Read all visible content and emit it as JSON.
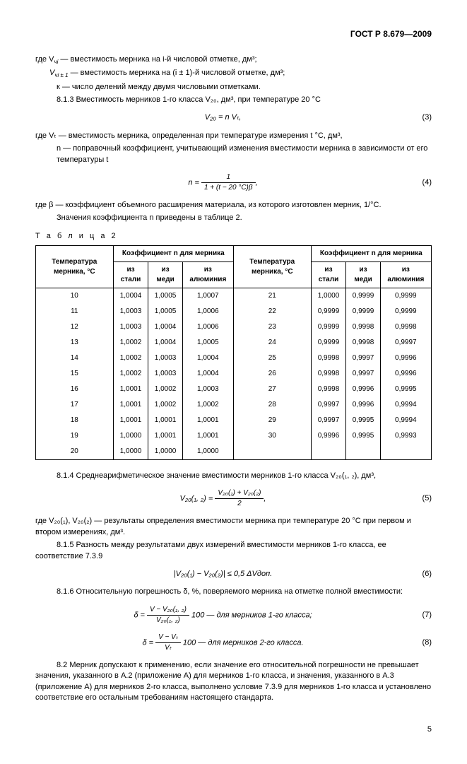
{
  "header": "ГОСТ Р 8.679—2009",
  "lines": {
    "l1a": "где V",
    "l1b": " — вместимость мерника на i-й числовой отметке, дм³;",
    "l2a": "V",
    "l2b": " — вместимость мерника на (i ± 1)-й числовой отметке, дм³;",
    "l3": "к — число делений между двумя числовыми отметками.",
    "l4": "8.1.3 Вместимость мерников 1-го класса V₂₀, дм³, при температуре 20 °C",
    "l5": "где Vₜ — вместимость мерника, определенная при температуре измерения t °C, дм³,",
    "l6": "n — поправочный коэффициент, учитывающий изменения вместимости мерника в зависимости от его температуры t",
    "l7": "где β — коэффициент объемного расширения материала, из которого изготовлен мерник, 1/°C.",
    "l8": "Значения коэффициента n приведены в таблице 2.",
    "l9": "8.1.4 Среднеарифметическое значение вместимости мерников 1-го класса V₂₀(₁, ₂), дм³,",
    "l10": "где V₂₀(₁), V₂₀(₂) — результаты определения вместимости мерника при температуре 20 °C при первом и втором измерениях, дм³.",
    "l11": "8.1.5 Разность между результатами двух измерений вместимости мерников 1-го класса, ее соответствие 7.3.9",
    "l12": "8.1.6 Относительную погрешность δ, %, поверяемого мерника на отметке полной вместимости:",
    "l13": "8.2 Мерник допускают к применению, если значение его относительной погрешности не превышает значения, указанного в А.2 (приложение А) для мерников 1-го класса, и значения, указанного в А.3 (приложение А) для мерников 2-го класса, выполнено условие 7.3.9 для мерников 1-го класса и установлено соответствие его остальным требованиям настоящего стандарта."
  },
  "formulas": {
    "f3": "V₂₀ = n Vₜ,",
    "f4_lhs": "n = ",
    "f4_num": "1",
    "f4_den": "1 + (t − 20 °C)β",
    "f5_lhs": "V₂₀(₁, ₂) = ",
    "f5_num": "V₂₀(₁) + V₂₀(₂)",
    "f5_den": "2",
    "f6": "|V₂₀(₁) − V₂₀(₂)| ≤ 0,5 ΔVдоп.",
    "f7_lhs": "δ = ",
    "f7_num": "V − V₂₀(₁, ₂)",
    "f7_den": "V₂₀(₁, ₂)",
    "f7_tail": " 100 — для мерников 1-го класса;",
    "f8_lhs": "δ = ",
    "f8_num": "V − Vₜ",
    "f8_den": "Vₜ",
    "f8_tail": " 100 — для мерников 2-го класса."
  },
  "eqnums": {
    "n3": "(3)",
    "n4": "(4)",
    "n5": "(5)",
    "n6": "(6)",
    "n7": "(7)",
    "n8": "(8)"
  },
  "tablelabel": "Т а б л и ц а  2",
  "table": {
    "h1": "Температура мерника, °C",
    "h2": "Коэффициент n для мерника",
    "c1": "из стали",
    "c2": "из меди",
    "c3": "из алюминия",
    "left": [
      [
        "10",
        "1,0004",
        "1,0005",
        "1,0007"
      ],
      [
        "11",
        "1,0003",
        "1,0005",
        "1,0006"
      ],
      [
        "12",
        "1,0003",
        "1,0004",
        "1,0006"
      ],
      [
        "13",
        "1,0002",
        "1,0004",
        "1,0005"
      ],
      [
        "14",
        "1,0002",
        "1,0003",
        "1,0004"
      ],
      [
        "15",
        "1,0002",
        "1,0003",
        "1,0004"
      ],
      [
        "16",
        "1,0001",
        "1,0002",
        "1,0003"
      ],
      [
        "17",
        "1,0001",
        "1,0002",
        "1,0002"
      ],
      [
        "18",
        "1,0001",
        "1,0001",
        "1,0001"
      ],
      [
        "19",
        "1,0000",
        "1,0001",
        "1,0001"
      ],
      [
        "20",
        "1,0000",
        "1,0000",
        "1,0000"
      ]
    ],
    "right": [
      [
        "21",
        "1,0000",
        "0,9999",
        "0,9999"
      ],
      [
        "22",
        "0,9999",
        "0,9999",
        "0,9999"
      ],
      [
        "23",
        "0,9999",
        "0,9998",
        "0,9998"
      ],
      [
        "24",
        "0,9999",
        "0,9998",
        "0,9997"
      ],
      [
        "25",
        "0,9998",
        "0,9997",
        "0,9996"
      ],
      [
        "26",
        "0,9998",
        "0,9997",
        "0,9996"
      ],
      [
        "27",
        "0,9998",
        "0,9996",
        "0,9995"
      ],
      [
        "28",
        "0,9997",
        "0,9996",
        "0,9994"
      ],
      [
        "29",
        "0,9997",
        "0,9995",
        "0,9994"
      ],
      [
        "30",
        "0,9996",
        "0,9995",
        "0,9993"
      ]
    ]
  },
  "pagenum": "5"
}
